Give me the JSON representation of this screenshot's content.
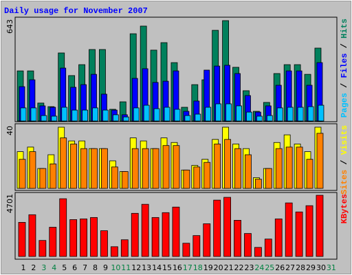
{
  "chart_data": [
    {
      "type": "bar",
      "title": "Daily usage for November 2007",
      "ylim": [
        0,
        643
      ],
      "yticks": [
        643
      ],
      "legend_separator": " / ",
      "series": [
        {
          "name": "Pages",
          "color": "#00c0ff",
          "values": [
            84,
            84,
            35,
            31,
            88,
            70,
            70,
            84,
            70,
            40,
            26,
            84,
            101,
            79,
            88,
            75,
            35,
            44,
            88,
            110,
            110,
            97,
            57,
            31,
            35,
            84,
            88,
            88,
            92,
            101,
            0
          ]
        },
        {
          "name": "Files",
          "color": "#0000ff",
          "values": [
            220,
            264,
            97,
            88,
            339,
            216,
            233,
            299,
            172,
            70,
            40,
            273,
            335,
            247,
            255,
            321,
            62,
            128,
            326,
            352,
            357,
            304,
            163,
            57,
            97,
            229,
            321,
            321,
            229,
            374,
            0
          ]
        },
        {
          "name": "Hits",
          "color": "#00805c",
          "values": [
            321,
            321,
            115,
            92,
            436,
            291,
            361,
            458,
            458,
            75,
            123,
            559,
            608,
            454,
            502,
            374,
            88,
            233,
            264,
            581,
            643,
            344,
            194,
            62,
            119,
            304,
            361,
            361,
            299,
            467,
            0
          ]
        }
      ]
    },
    {
      "type": "bar",
      "ylim": [
        0,
        40
      ],
      "yticks": [
        40
      ],
      "legend_separator": " / ",
      "series": [
        {
          "name": "Sites",
          "color": "#ff8000",
          "values": [
            19,
            24,
            13,
            16,
            33,
            29,
            26,
            26,
            26,
            14,
            11,
            26,
            26,
            26,
            28,
            28,
            12,
            14,
            17,
            29,
            32,
            26,
            22,
            6,
            13,
            26,
            27,
            27,
            19,
            36,
            0
          ]
        },
        {
          "name": "Visits",
          "color": "#ffff00",
          "values": [
            24,
            27,
            13,
            22,
            40,
            31,
            31,
            26,
            26,
            18,
            11,
            33,
            31,
            26,
            33,
            30,
            12,
            15,
            19,
            32,
            40,
            29,
            26,
            7,
            13,
            30,
            35,
            29,
            24,
            40,
            0
          ]
        }
      ]
    },
    {
      "type": "bar",
      "ylim": [
        0,
        4701
      ],
      "yticks": [
        4701
      ],
      "categories": [
        "1",
        "2",
        "3",
        "4",
        "5",
        "6",
        "7",
        "8",
        "9",
        "10",
        "11",
        "12",
        "13",
        "14",
        "15",
        "16",
        "17",
        "18",
        "19",
        "20",
        "21",
        "22",
        "23",
        "24",
        "25",
        "26",
        "27",
        "28",
        "29",
        "30",
        "31"
      ],
      "category_colors": [
        "#000000",
        "#000000",
        "#008040",
        "#008040",
        "#000000",
        "#000000",
        "#000000",
        "#000000",
        "#000000",
        "#008040",
        "#008040",
        "#000000",
        "#000000",
        "#000000",
        "#000000",
        "#000000",
        "#008040",
        "#008040",
        "#000000",
        "#000000",
        "#000000",
        "#000000",
        "#000000",
        "#008040",
        "#008040",
        "#000000",
        "#000000",
        "#000000",
        "#000000",
        "#000000",
        "#008040"
      ],
      "series": [
        {
          "name": "KBytes",
          "color": "#ff0000",
          "values": [
            2618,
            3205,
            1229,
            2244,
            4434,
            2831,
            2885,
            2992,
            1977,
            748,
            1282,
            3312,
            4006,
            2992,
            3365,
            3793,
            1015,
            1603,
            2511,
            4327,
            4541,
            2778,
            1763,
            694,
            1336,
            2885,
            4113,
            3419,
            3900,
            4701,
            0
          ]
        }
      ]
    }
  ]
}
